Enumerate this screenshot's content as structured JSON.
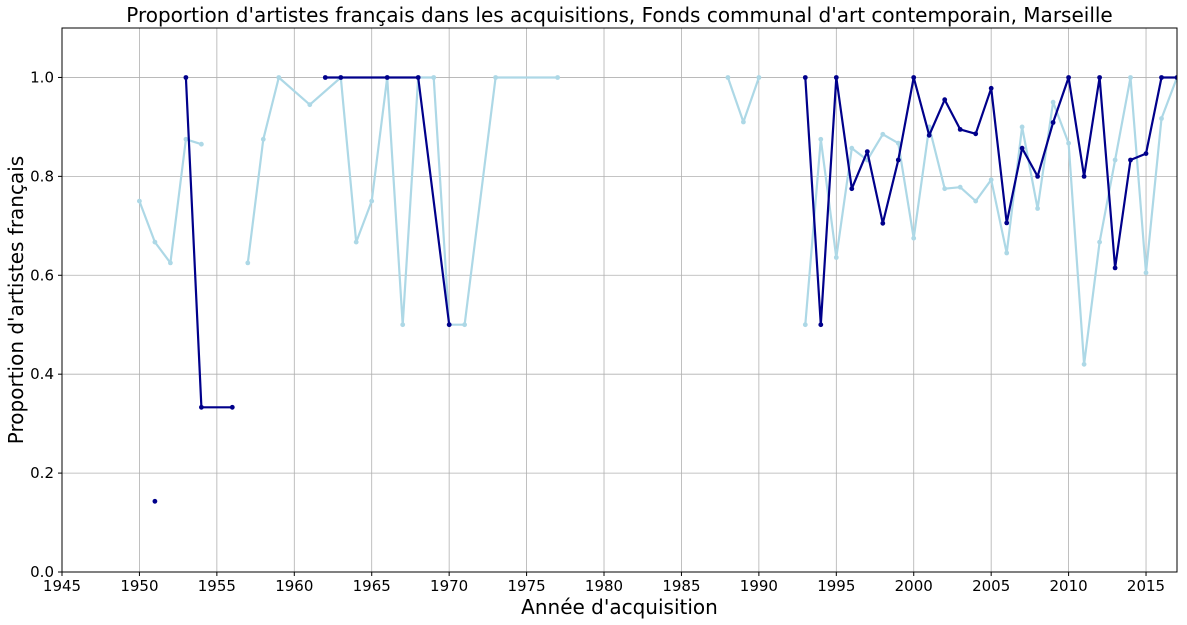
{
  "chart_data": {
    "type": "line",
    "title": "Proportion d'artistes français dans les acquisitions, Fonds communal d'art contemporain, Marseille",
    "xlabel": "Année d'acquisition",
    "ylabel": "Proportion d'artistes français",
    "xlim": [
      1945,
      2017
    ],
    "ylim": [
      0,
      1.1
    ],
    "xticks": [
      1945,
      1950,
      1955,
      1960,
      1965,
      1970,
      1975,
      1980,
      1985,
      1990,
      1995,
      2000,
      2005,
      2010,
      2015
    ],
    "yticks": [
      0.0,
      0.2,
      0.4,
      0.6,
      0.8,
      1.0
    ],
    "grid": true,
    "legend": "none",
    "series": [
      {
        "color": "#add8e6",
        "points": [
          [
            1950,
            0.75
          ],
          [
            1951,
            0.667
          ],
          [
            1952,
            0.625
          ],
          [
            1953,
            0.875
          ],
          [
            1954,
            0.865
          ],
          null,
          [
            1957,
            0.625
          ],
          [
            1958,
            0.875
          ],
          [
            1959,
            1.0
          ],
          [
            1961,
            0.945
          ],
          [
            1963,
            1.0
          ],
          [
            1964,
            0.667
          ],
          [
            1965,
            0.75
          ],
          [
            1966,
            1.0
          ],
          [
            1967,
            0.5
          ],
          [
            1968,
            1.0
          ],
          [
            1969,
            1.0
          ],
          [
            1970,
            0.5
          ],
          [
            1971,
            0.5
          ],
          [
            1973,
            1.0
          ],
          [
            1977,
            1.0
          ],
          null,
          [
            1988,
            1.0
          ],
          [
            1989,
            0.91
          ],
          [
            1990,
            1.0
          ],
          null,
          [
            1993,
            0.5
          ],
          [
            1994,
            0.875
          ],
          [
            1995,
            0.636
          ],
          [
            1996,
            0.857
          ],
          [
            1997,
            0.833
          ],
          [
            1998,
            0.885
          ],
          [
            1999,
            0.867
          ],
          [
            2000,
            0.675
          ],
          [
            2001,
            0.9
          ],
          [
            2002,
            0.775
          ],
          [
            2003,
            0.778
          ],
          [
            2004,
            0.75
          ],
          [
            2005,
            0.793
          ],
          [
            2006,
            0.645
          ],
          [
            2007,
            0.9
          ],
          [
            2008,
            0.735
          ],
          [
            2009,
            0.95
          ],
          [
            2010,
            0.867
          ],
          [
            2011,
            0.42
          ],
          [
            2012,
            0.667
          ],
          [
            2013,
            0.833
          ],
          [
            2014,
            1.0
          ],
          [
            2015,
            0.605
          ],
          [
            2016,
            0.917
          ],
          [
            2017,
            1.0
          ]
        ]
      },
      {
        "color": "#00008b",
        "points": [
          [
            1951,
            0.143
          ],
          null,
          [
            1953,
            1.0
          ],
          [
            1954,
            0.333
          ],
          [
            1956,
            0.333
          ],
          null,
          [
            1962,
            1.0
          ],
          [
            1963,
            1.0
          ],
          [
            1966,
            1.0
          ],
          [
            1968,
            1.0
          ],
          [
            1970,
            0.5
          ],
          null,
          [
            1993,
            1.0
          ],
          [
            1994,
            0.5
          ],
          [
            1995,
            1.0
          ],
          [
            1996,
            0.775
          ],
          [
            1997,
            0.85
          ],
          [
            1998,
            0.705
          ],
          [
            1999,
            0.833
          ],
          [
            2000,
            1.0
          ],
          [
            2001,
            0.883
          ],
          [
            2002,
            0.955
          ],
          [
            2003,
            0.895
          ],
          [
            2004,
            0.886
          ],
          [
            2005,
            0.978
          ],
          [
            2006,
            0.706
          ],
          [
            2007,
            0.857
          ],
          [
            2008,
            0.8
          ],
          [
            2009,
            0.909
          ],
          [
            2010,
            1.0
          ],
          [
            2011,
            0.8
          ],
          [
            2012,
            1.0
          ],
          [
            2013,
            0.615
          ],
          [
            2014,
            0.833
          ],
          [
            2015,
            0.846
          ],
          [
            2016,
            1.0
          ],
          [
            2017,
            1.0
          ]
        ]
      }
    ]
  }
}
